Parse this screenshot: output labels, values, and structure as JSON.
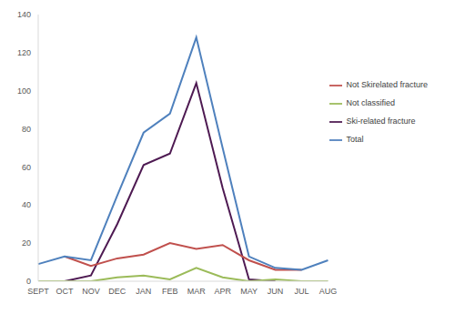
{
  "chart_data": {
    "type": "line",
    "categories": [
      "SEPT",
      "OCT",
      "NOV",
      "DEC",
      "JAN",
      "FEB",
      "MAR",
      "APR",
      "MAY",
      "JUN",
      "JUL",
      "AUG"
    ],
    "series": [
      {
        "name": "Ski-related  fracture",
        "color": "#4e1a52",
        "values": [
          null,
          0,
          3,
          30,
          61,
          67,
          104,
          49,
          1,
          0,
          null,
          null
        ]
      },
      {
        "name": "Not Skirelated fracture",
        "color": "#c0504d",
        "values": [
          null,
          13,
          8,
          12,
          14,
          20,
          17,
          19,
          11,
          6,
          6,
          null
        ]
      },
      {
        "name": "Not classified",
        "color": "#9bbb59",
        "values": [
          0,
          0,
          0,
          2,
          3,
          1,
          7,
          2,
          0,
          1,
          0,
          0
        ]
      },
      {
        "name": "Total",
        "color": "#4f81bd",
        "values": [
          9,
          13,
          11,
          45,
          78,
          88,
          128,
          70,
          13,
          7,
          6,
          11
        ]
      }
    ],
    "ylim": [
      0,
      140
    ],
    "yticks": [
      0,
      20,
      40,
      60,
      80,
      100,
      120,
      140
    ],
    "grid": false,
    "legend": "upper right"
  }
}
